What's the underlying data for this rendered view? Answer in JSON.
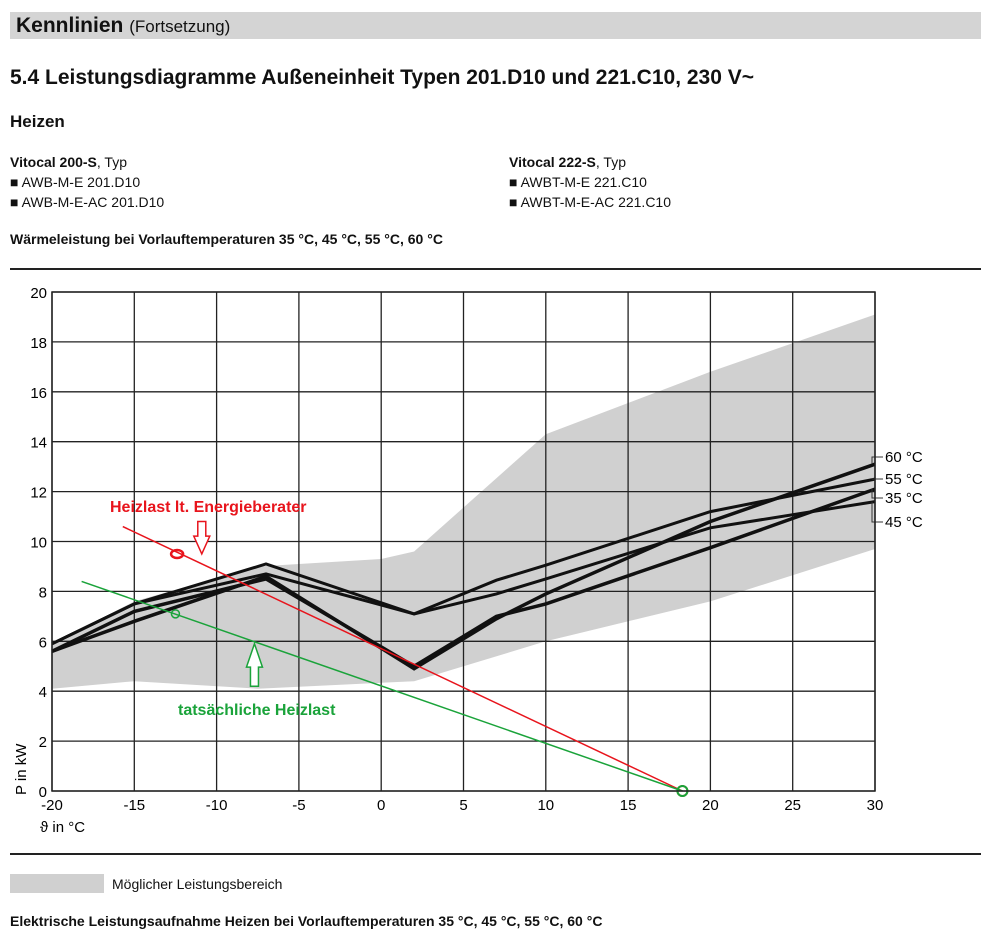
{
  "header": {
    "title": "Kennlinien",
    "subtitle": "(Fortsetzung)"
  },
  "section_title": "5.4 Leistungsdiagramme Außeneinheit Typen 201.D10 und 221.C10, 230 V~",
  "subsection": "Heizen",
  "models": [
    {
      "name": "Vitocal 200-S",
      "suffix": ", Typ",
      "types": [
        "AWB-M-E 201.D10",
        "AWB-M-E-AC 201.D10"
      ]
    },
    {
      "name": "Vitocal 222-S",
      "suffix": ", Typ",
      "types": [
        "AWBT-M-E 221.C10",
        "AWBT-M-E-AC 221.C10"
      ]
    }
  ],
  "bullet": "■",
  "chart_heading": "Wärmeleistung bei Vorlauftemperaturen 35 °C, 45 °C, 55 °C, 60 °C",
  "legend_label": "Möglicher Leistungsbereich",
  "footer_heading": "Elektrische Leistungsaufnahme Heizen bei Vorlauftemperaturen 35 °C, 45 °C, 55 °C, 60 °C",
  "chart_data": {
    "type": "line",
    "xlabel": "ϑ in °C",
    "ylabel": "P in kW",
    "xlim": [
      -20,
      30
    ],
    "ylim": [
      0,
      20
    ],
    "xticks": [
      -20,
      -15,
      -10,
      -5,
      0,
      5,
      10,
      15,
      20,
      25,
      30
    ],
    "yticks": [
      0,
      2,
      4,
      6,
      8,
      10,
      12,
      14,
      16,
      18,
      20
    ],
    "grid": true,
    "band": {
      "name": "Möglicher Leistungsbereich",
      "color": "#d0d0d0",
      "upper": [
        [
          -20,
          5.9
        ],
        [
          -15,
          7.6
        ],
        [
          -7.5,
          9.0
        ],
        [
          0,
          9.3
        ],
        [
          2,
          9.6
        ],
        [
          10,
          14.3
        ],
        [
          20,
          16.8
        ],
        [
          30,
          19.1
        ]
      ],
      "lower": [
        [
          -20,
          4.1
        ],
        [
          -15,
          4.4
        ],
        [
          -7.5,
          4.1
        ],
        [
          2,
          4.4
        ],
        [
          5,
          5.0
        ],
        [
          10,
          6.0
        ],
        [
          20,
          7.6
        ],
        [
          30,
          9.7
        ]
      ]
    },
    "series": [
      {
        "name": "60 °C",
        "points": [
          [
            -20,
            5.6
          ],
          [
            -15,
            6.8
          ],
          [
            -7,
            8.6
          ],
          [
            2,
            4.9
          ],
          [
            7,
            6.9
          ],
          [
            10,
            7.9
          ],
          [
            20,
            10.8
          ],
          [
            30,
            13.1
          ]
        ]
      },
      {
        "name": "55 °C",
        "points": [
          [
            -20,
            5.9
          ],
          [
            -15,
            7.5
          ],
          [
            -7,
            9.1
          ],
          [
            2,
            7.1
          ],
          [
            7,
            8.45
          ],
          [
            10,
            9.05
          ],
          [
            20,
            11.2
          ],
          [
            30,
            12.5
          ]
        ]
      },
      {
        "name": "35 °C",
        "points": [
          [
            -20,
            5.6
          ],
          [
            -15,
            7.2
          ],
          [
            -7,
            8.5
          ],
          [
            2,
            5.0
          ],
          [
            7,
            7.0
          ],
          [
            10,
            7.5
          ],
          [
            20,
            9.75
          ],
          [
            30,
            12.1
          ]
        ]
      },
      {
        "name": "45 °C",
        "points": [
          [
            -20,
            5.9
          ],
          [
            -15,
            7.5
          ],
          [
            -7,
            8.7
          ],
          [
            2,
            7.1
          ],
          [
            7,
            7.9
          ],
          [
            10,
            8.5
          ],
          [
            20,
            10.55
          ],
          [
            30,
            11.6
          ]
        ]
      }
    ],
    "annotations": [
      {
        "text": "Heizlast lt. Energieberater",
        "color": "#e8141c",
        "line": [
          [
            -15.7,
            10.6
          ],
          [
            18.3,
            0
          ]
        ],
        "marker": [
          -12.4,
          9.5
        ],
        "arrow": {
          "x": -10.9,
          "from": 10.8,
          "to": 9.5
        }
      },
      {
        "text": "tatsächliche Heizlast",
        "color": "#1aa33a",
        "line": [
          [
            -18.2,
            8.4
          ],
          [
            18.3,
            0
          ]
        ],
        "marker": [
          -12.5,
          7.1
        ],
        "arrow": {
          "x": -7.7,
          "from": 4.2,
          "to": 5.9
        }
      }
    ]
  }
}
